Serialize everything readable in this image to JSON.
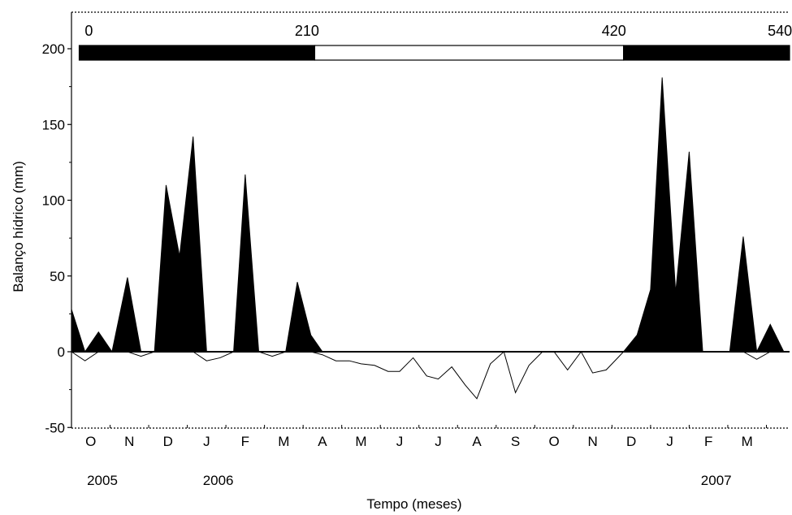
{
  "chart_data": {
    "type": "area",
    "xlabel": "Tempo (meses)",
    "ylabel": "Balanço hídrico (mm)",
    "ylim": [
      -50,
      200
    ],
    "xlim": [
      0,
      18.6
    ],
    "yticks": [
      -50,
      0,
      50,
      100,
      150,
      200
    ],
    "month_ticks": [
      {
        "x": 0.5,
        "label": "O"
      },
      {
        "x": 1.5,
        "label": "N"
      },
      {
        "x": 2.5,
        "label": "D"
      },
      {
        "x": 3.5,
        "label": "J"
      },
      {
        "x": 4.5,
        "label": "F"
      },
      {
        "x": 5.5,
        "label": "M"
      },
      {
        "x": 6.5,
        "label": "A"
      },
      {
        "x": 7.5,
        "label": "M"
      },
      {
        "x": 8.5,
        "label": "J"
      },
      {
        "x": 9.5,
        "label": "J"
      },
      {
        "x": 10.5,
        "label": "A"
      },
      {
        "x": 11.5,
        "label": "S"
      },
      {
        "x": 12.5,
        "label": "O"
      },
      {
        "x": 13.5,
        "label": "N"
      },
      {
        "x": 14.5,
        "label": "D"
      },
      {
        "x": 15.5,
        "label": "J"
      },
      {
        "x": 16.5,
        "label": "F"
      },
      {
        "x": 17.5,
        "label": "M"
      }
    ],
    "years": [
      {
        "x": 0.8,
        "label": "2005"
      },
      {
        "x": 3.8,
        "label": "2006"
      },
      {
        "x": 16.7,
        "label": "2007"
      }
    ],
    "series": [
      {
        "fill": "#000000",
        "points": [
          [
            0,
            28
          ],
          [
            0.35,
            0
          ],
          [
            0.7,
            13
          ],
          [
            1.05,
            0
          ],
          [
            1.4,
            0
          ],
          [
            1.45,
            0
          ],
          [
            1.4,
            0
          ],
          [
            1.43,
            0
          ],
          [
            1.45,
            0
          ],
          [
            1.7,
            0
          ],
          [
            1.43,
            0
          ],
          [
            1.45,
            0
          ],
          [
            1.4,
            0
          ],
          [
            1.45,
            0
          ],
          [
            1.4,
            0
          ],
          [
            1.45,
            0
          ],
          [
            1.4,
            0
          ],
          [
            1.45,
            0
          ],
          [
            1.4,
            0
          ],
          [
            1.45,
            0
          ]
        ]
      }
    ],
    "positive_points": [
      [
        0,
        28
      ],
      [
        0.35,
        0
      ],
      [
        0.7,
        13
      ],
      [
        1.05,
        0
      ],
      [
        1.4,
        0
      ],
      [
        1.42,
        0
      ],
      [
        1.45,
        0
      ],
      [
        1.68,
        0
      ],
      [
        1.45,
        0
      ],
      [
        1.45,
        0
      ],
      [
        1.45,
        0
      ],
      [
        1.45,
        0
      ],
      [
        1.45,
        0
      ],
      [
        1.45,
        0
      ],
      [
        1.45,
        0
      ],
      [
        1.45,
        0
      ]
    ],
    "balance_positive": [
      [
        0,
        28
      ],
      [
        0.35,
        0
      ],
      [
        0.7,
        13
      ],
      [
        1.05,
        0
      ],
      [
        1.4,
        0
      ],
      [
        1.45,
        0
      ],
      [
        1.45,
        0
      ],
      [
        1.75,
        0
      ],
      [
        1.45,
        0
      ],
      [
        1.45,
        0
      ]
    ],
    "positive": [
      [
        0,
        28
      ],
      [
        0.35,
        0
      ],
      [
        0.7,
        13
      ],
      [
        1.05,
        0
      ],
      [
        1.45,
        49
      ],
      [
        1.8,
        0
      ],
      [
        2.15,
        0
      ],
      [
        2.45,
        110
      ],
      [
        2.8,
        63
      ],
      [
        3.15,
        142
      ],
      [
        3.5,
        0
      ],
      [
        3.85,
        0
      ],
      [
        4.2,
        0
      ],
      [
        4.5,
        117
      ],
      [
        4.85,
        0
      ],
      [
        5.2,
        0
      ],
      [
        5.55,
        0
      ],
      [
        5.85,
        46
      ],
      [
        6.2,
        11
      ],
      [
        6.5,
        0
      ]
    ],
    "positive_2007": [
      [
        14.3,
        0
      ],
      [
        14.65,
        11
      ],
      [
        15.0,
        41
      ],
      [
        15.3,
        181
      ],
      [
        15.65,
        39
      ],
      [
        16.0,
        132
      ],
      [
        16.35,
        0
      ],
      [
        16.7,
        0
      ],
      [
        17.05,
        0
      ],
      [
        17.4,
        76
      ],
      [
        17.75,
        0
      ],
      [
        18.1,
        18
      ],
      [
        18.45,
        0
      ],
      [
        18.6,
        0
      ]
    ],
    "deficit": [
      [
        0,
        0
      ],
      [
        0.35,
        -6
      ],
      [
        0.7,
        0
      ],
      [
        1.05,
        0
      ],
      [
        1.45,
        0
      ],
      [
        1.8,
        -3
      ],
      [
        2.15,
        0
      ],
      [
        2.45,
        0
      ],
      [
        2.8,
        0
      ],
      [
        3.15,
        0
      ],
      [
        3.5,
        -6
      ],
      [
        3.85,
        -4
      ],
      [
        4.2,
        0
      ],
      [
        4.5,
        0
      ],
      [
        4.85,
        0
      ],
      [
        5.2,
        -3
      ],
      [
        5.55,
        0
      ],
      [
        5.85,
        0
      ],
      [
        6.2,
        0
      ],
      [
        6.5,
        -2
      ],
      [
        6.85,
        -6
      ],
      [
        7.2,
        -6
      ],
      [
        7.5,
        -8
      ],
      [
        7.85,
        -9
      ],
      [
        8.2,
        -13
      ],
      [
        8.5,
        -13
      ],
      [
        8.85,
        -4
      ],
      [
        9.2,
        -16
      ],
      [
        9.5,
        -18
      ],
      [
        9.85,
        -10
      ],
      [
        10.2,
        -22
      ],
      [
        10.5,
        -31
      ],
      [
        10.85,
        -8
      ],
      [
        11.2,
        0
      ],
      [
        11.5,
        -27
      ],
      [
        11.85,
        -9
      ],
      [
        12.2,
        0
      ],
      [
        12.5,
        0
      ],
      [
        12.85,
        -12
      ],
      [
        13.2,
        0
      ],
      [
        13.5,
        -14
      ],
      [
        13.85,
        -12
      ],
      [
        14.3,
        0
      ],
      [
        14.65,
        0
      ],
      [
        15.0,
        0
      ],
      [
        15.3,
        0
      ],
      [
        15.65,
        0
      ],
      [
        16.0,
        0
      ],
      [
        16.35,
        0
      ],
      [
        16.7,
        0
      ],
      [
        17.05,
        0
      ],
      [
        17.4,
        0
      ],
      [
        17.75,
        -5
      ],
      [
        18.1,
        0
      ],
      [
        18.6,
        0
      ]
    ],
    "top_bar": {
      "labels": [
        {
          "x": 0.45,
          "label": "0"
        },
        {
          "x": 6.1,
          "label": "210"
        },
        {
          "x": 14.05,
          "label": "420"
        },
        {
          "x": 18.35,
          "label": "540"
        }
      ],
      "segments": [
        {
          "from": 0.2,
          "to": 6.3,
          "color": "#000000"
        },
        {
          "from": 6.3,
          "to": 14.3,
          "color": "#ffffff"
        },
        {
          "from": 14.3,
          "to": 18.6,
          "color": "#000000"
        }
      ]
    }
  }
}
